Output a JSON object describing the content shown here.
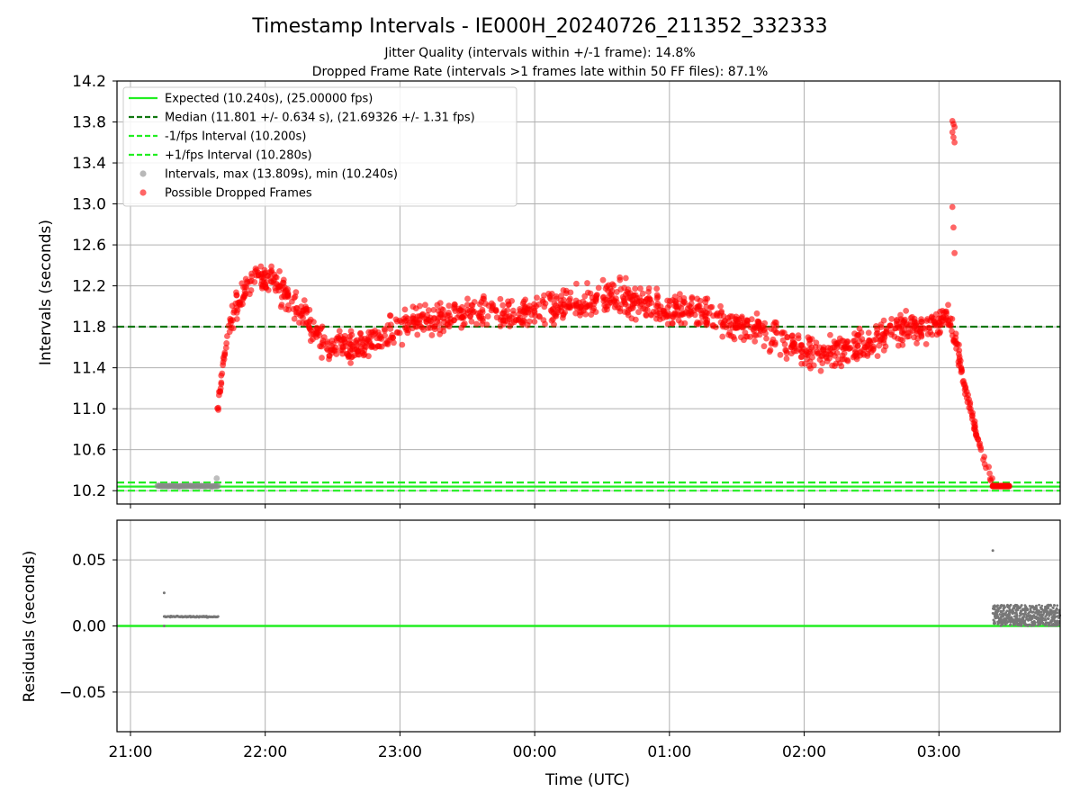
{
  "title": "Timestamp Intervals - IE000H_20240726_211352_332333",
  "subtitle_1": "Jitter Quality (intervals within +/-1 frame): 14.8%",
  "subtitle_2": "Dropped Frame Rate (intervals >1 frames late within 50 FF files): 87.1%",
  "colors": {
    "expected": "#22ee22",
    "median": "#117711",
    "interval_band": "#22ee22",
    "points_normal": "#888888",
    "points_dropped": "#ff0000",
    "grid": "#b0b0b0",
    "residuals": "#777777"
  },
  "chart_data": [
    {
      "type": "scatter",
      "name": "intervals",
      "xlabel": "",
      "ylabel": "Intervals (seconds)",
      "x_unit": "hours since 21:00 UTC",
      "xlim": [
        -0.1,
        6.9
      ],
      "ylim": [
        10.07,
        14.2
      ],
      "yticks": [
        "10.2",
        "10.6",
        "11.0",
        "11.4",
        "11.8",
        "12.2",
        "12.6",
        "13.0",
        "13.4",
        "13.8",
        "14.2"
      ],
      "grid": true,
      "legend_position": "top-left",
      "legend": [
        "Expected (10.240s), (25.00000 fps)",
        "Median (11.801 +/- 0.634 s), (21.69326 +/- 1.31 fps)",
        "-1/fps Interval (10.200s)",
        "+1/fps Interval (10.280s)",
        "Intervals, max (13.809s), min (10.240s)",
        "Possible Dropped Frames"
      ],
      "lines": {
        "expected": 10.24,
        "median": 11.801,
        "minus_one_frame": 10.2,
        "plus_one_frame": 10.28
      },
      "series_normal": {
        "x_range": [
          0.2,
          0.65
        ],
        "y": 10.245,
        "outlier": [
          0.64,
          10.32
        ]
      },
      "series_dropped_profile": {
        "x": [
          0.64,
          0.66,
          0.68,
          0.7,
          0.72,
          0.75,
          0.8,
          0.85,
          0.95,
          1.05,
          1.2,
          1.3,
          1.45,
          1.6,
          1.8,
          2.0,
          2.2,
          2.5,
          2.8,
          3.0,
          3.2,
          3.4,
          3.6,
          3.8,
          4.0,
          4.2,
          4.4,
          4.6,
          4.8,
          5.0,
          5.2,
          5.4,
          5.6,
          5.8,
          5.95,
          6.05,
          6.1,
          6.15,
          6.2,
          6.25,
          6.3,
          6.35,
          6.4
        ],
        "y": [
          10.9,
          11.15,
          11.35,
          11.55,
          11.75,
          11.9,
          12.05,
          12.15,
          12.3,
          12.25,
          12.05,
          11.9,
          11.6,
          11.6,
          11.65,
          11.8,
          11.85,
          11.95,
          11.9,
          11.95,
          12.0,
          12.05,
          12.1,
          12.05,
          11.95,
          11.95,
          11.85,
          11.8,
          11.7,
          11.55,
          11.55,
          11.6,
          11.75,
          11.8,
          11.8,
          11.9,
          11.8,
          11.5,
          11.15,
          10.9,
          10.65,
          10.45,
          10.28
        ],
        "spread": 0.13
      },
      "dropped_spike": {
        "x": 6.1,
        "y": [
          13.81,
          13.78,
          13.75,
          13.7,
          13.65,
          13.6,
          12.97,
          12.77,
          12.52
        ]
      },
      "dropped_tail": {
        "x_range": [
          6.4,
          6.52
        ],
        "y": 10.245
      }
    },
    {
      "type": "scatter",
      "name": "residuals",
      "xlabel": "Time (UTC)",
      "ylabel": "Residuals (seconds)",
      "xlim": [
        -0.1,
        6.9
      ],
      "ylim": [
        -0.08,
        0.08
      ],
      "yticks": [
        "−0.05",
        "0.00",
        "0.05"
      ],
      "xticks": [
        "21:00",
        "22:00",
        "23:00",
        "00:00",
        "01:00",
        "02:00",
        "03:00"
      ],
      "grid": true,
      "zero_line": 0.0,
      "early_block": {
        "x_range": [
          0.25,
          0.65
        ],
        "y": 0.007,
        "outliers": [
          [
            0.25,
            0.025
          ],
          [
            0.25,
            0.0
          ]
        ]
      },
      "late_block": {
        "x_range": [
          6.4,
          6.9
        ],
        "y_range": [
          0.0,
          0.016
        ],
        "outliers": [
          [
            6.4,
            0.057
          ]
        ]
      }
    }
  ]
}
